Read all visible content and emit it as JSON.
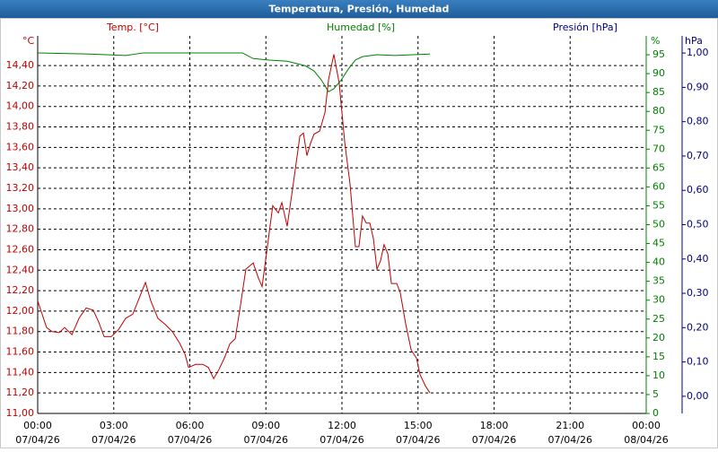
{
  "chart_data": {
    "type": "line",
    "title": "Temperatura, Presión, Humedad",
    "grid": true,
    "xlim": [
      0,
      24
    ],
    "xticks": [
      {
        "value": 0,
        "label": "00:00",
        "sublabel": "07/04/26"
      },
      {
        "value": 3,
        "label": "03:00",
        "sublabel": "07/04/26"
      },
      {
        "value": 6,
        "label": "06:00",
        "sublabel": "07/04/26"
      },
      {
        "value": 9,
        "label": "09:00",
        "sublabel": "07/04/26"
      },
      {
        "value": 12,
        "label": "12:00",
        "sublabel": "07/04/26"
      },
      {
        "value": 15,
        "label": "15:00",
        "sublabel": "07/04/26"
      },
      {
        "value": 18,
        "label": "18:00",
        "sublabel": "07/04/26"
      },
      {
        "value": 21,
        "label": "21:00",
        "sublabel": "07/04/26"
      },
      {
        "value": 24,
        "label": "00:00",
        "sublabel": "08/04/26"
      }
    ],
    "y_unit": "°C",
    "ylim": [
      11,
      14.69
    ],
    "yticks": [
      {
        "value": 11,
        "label": "11,00"
      },
      {
        "value": 11.2,
        "label": "11,20"
      },
      {
        "value": 11.4,
        "label": "11,40"
      },
      {
        "value": 11.6,
        "label": "11,60"
      },
      {
        "value": 11.8,
        "label": "11,80"
      },
      {
        "value": 12,
        "label": "12,00"
      },
      {
        "value": 12.2,
        "label": "12,20"
      },
      {
        "value": 12.4,
        "label": "12,40"
      },
      {
        "value": 12.6,
        "label": "12,60"
      },
      {
        "value": 12.8,
        "label": "12,80"
      },
      {
        "value": 13,
        "label": "13,00"
      },
      {
        "value": 13.2,
        "label": "13,20"
      },
      {
        "value": 13.4,
        "label": "13,40"
      },
      {
        "value": 13.6,
        "label": "13,60"
      },
      {
        "value": 13.8,
        "label": "13,80"
      },
      {
        "value": 14,
        "label": "14,00"
      },
      {
        "value": 14.2,
        "label": "14,20"
      },
      {
        "value": 14.4,
        "label": "14,40"
      }
    ],
    "y2_unit": "%",
    "y2lim": [
      0,
      100
    ],
    "y2ticks": [
      0,
      5,
      10,
      15,
      20,
      25,
      30,
      35,
      40,
      45,
      50,
      55,
      60,
      65,
      70,
      75,
      80,
      85,
      90,
      95
    ],
    "y3_unit": "hPa",
    "y3_label": "Presión [hPa]",
    "y3_color": "#000080",
    "y3lim": [
      -0.05,
      1.05
    ],
    "y3ticks": [
      {
        "value": 0,
        "label": "0,00"
      },
      {
        "value": 0.1,
        "label": "0,10"
      },
      {
        "value": 0.2,
        "label": "0,20"
      },
      {
        "value": 0.3,
        "label": "0,30"
      },
      {
        "value": 0.4,
        "label": "0,40"
      },
      {
        "value": 0.5,
        "label": "0,50"
      },
      {
        "value": 0.6,
        "label": "0,60"
      },
      {
        "value": 0.7,
        "label": "0,70"
      },
      {
        "value": 0.8,
        "label": "0,80"
      },
      {
        "value": 0.9,
        "label": "0,90"
      },
      {
        "value": 1,
        "label": "1,00"
      }
    ],
    "series": [
      {
        "name": "Temp. [°C]",
        "color": "#c00000",
        "x": [
          0,
          0.35,
          0.57,
          0.85,
          1.06,
          1.35,
          1.63,
          1.91,
          2.19,
          2.41,
          2.62,
          2.9,
          3.19,
          3.47,
          3.75,
          4.04,
          4.25,
          4.46,
          4.74,
          5.03,
          5.31,
          5.59,
          5.81,
          5.95,
          6.23,
          6.51,
          6.73,
          6.94,
          7.15,
          7.36,
          7.58,
          7.79,
          8,
          8.21,
          8.5,
          8.71,
          8.85,
          9.06,
          9.27,
          9.49,
          9.63,
          9.84,
          10.05,
          10.34,
          10.48,
          10.62,
          10.76,
          10.9,
          11.12,
          11.33,
          11.47,
          11.68,
          11.89,
          12.11,
          12.32,
          12.53,
          12.67,
          12.81,
          12.96,
          13.1,
          13.24,
          13.38,
          13.52,
          13.66,
          13.81,
          13.95,
          14.16,
          14.3,
          14.51,
          14.73,
          14.94,
          15.08,
          15.29,
          15.47
        ],
        "values": [
          12.1,
          11.84,
          11.8,
          11.79,
          11.84,
          11.77,
          11.93,
          12.03,
          12.01,
          11.89,
          11.75,
          11.75,
          11.82,
          11.93,
          11.97,
          12.15,
          12.28,
          12.1,
          11.93,
          11.87,
          11.8,
          11.69,
          11.58,
          11.45,
          11.48,
          11.48,
          11.45,
          11.34,
          11.43,
          11.54,
          11.68,
          11.73,
          12.06,
          12.41,
          12.47,
          12.32,
          12.24,
          12.63,
          13.03,
          12.96,
          13.06,
          12.83,
          13.19,
          13.71,
          13.74,
          13.52,
          13.64,
          13.73,
          13.76,
          13.94,
          14.26,
          14.51,
          14.23,
          13.65,
          13.24,
          12.63,
          12.63,
          12.93,
          12.86,
          12.86,
          12.71,
          12.41,
          12.49,
          12.65,
          12.56,
          12.27,
          12.27,
          12.18,
          11.88,
          11.62,
          11.54,
          11.38,
          11.27,
          11.2
        ]
      },
      {
        "name": "Humedad [%]",
        "color": "#008000",
        "axis": "y2",
        "x": [
          0,
          2.05,
          3.47,
          4.18,
          8.07,
          8.5,
          9.13,
          9.84,
          10.55,
          10.9,
          11.19,
          11.47,
          11.68,
          11.97,
          12.25,
          12.53,
          12.81,
          13.38,
          14.09,
          14.8,
          15.47
        ],
        "values": [
          95.5,
          95.2,
          94.8,
          95.5,
          95.5,
          94,
          93.6,
          93.3,
          92.1,
          90.7,
          88.3,
          85.2,
          86,
          88.3,
          91.2,
          93.6,
          94.5,
          95,
          94.8,
          95,
          95.2
        ]
      }
    ]
  }
}
